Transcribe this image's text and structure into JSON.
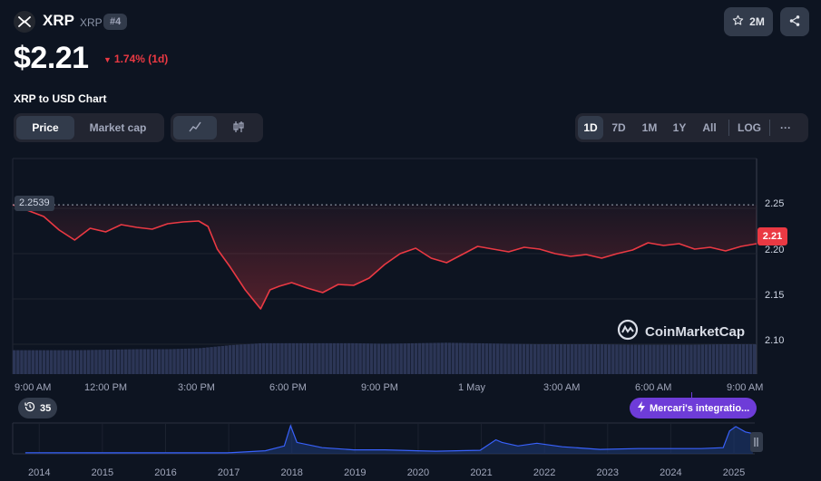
{
  "coin": {
    "name": "XRP",
    "symbol": "XRP",
    "rank": "#4",
    "watchlist_count": "2M"
  },
  "price": {
    "value": "$2.21",
    "change": "1.74% (1d)",
    "change_color": "#ea3943"
  },
  "chart_title": "XRP to USD Chart",
  "tabs": {
    "price": "Price",
    "market_cap": "Market cap"
  },
  "chart_type_icons": [
    "line-chart-icon",
    "candlestick-icon"
  ],
  "ranges": [
    "1D",
    "7D",
    "1M",
    "1Y",
    "All",
    "LOG",
    "···"
  ],
  "active_range": "1D",
  "watermark": "CoinMarketCap",
  "news_pill": "Mercari's integratio...",
  "history_count": "35",
  "chart_data": {
    "type": "line",
    "x_ticks": [
      "9:00 AM",
      "12:00 PM",
      "3:00 PM",
      "6:00 PM",
      "9:00 PM",
      "1 May",
      "3:00 AM",
      "6:00 AM",
      "9:00 AM"
    ],
    "y_ticks": [
      "2.25",
      "2.20",
      "2.15",
      "2.10"
    ],
    "ylim": [
      2.08,
      2.28
    ],
    "open_price_label": "2.2539",
    "current_price_label": "2.21",
    "line_color": "#ea3943",
    "x_hours": [
      0,
      1,
      1.5,
      2,
      2.5,
      3,
      3.5,
      4,
      4.5,
      5,
      5.5,
      6,
      6.3,
      6.6,
      7,
      7.5,
      8,
      8.3,
      8.6,
      9,
      9.5,
      10,
      10.5,
      11,
      11.5,
      12,
      12.5,
      13,
      13.5,
      14,
      14.5,
      15,
      15.5,
      16,
      16.5,
      17,
      17.5,
      18,
      18.5,
      19,
      19.5,
      20,
      20.5,
      21,
      21.5,
      22,
      22.5,
      23,
      23.5,
      24
    ],
    "values": [
      2.254,
      2.241,
      2.226,
      2.215,
      2.228,
      2.224,
      2.232,
      2.229,
      2.227,
      2.233,
      2.235,
      2.236,
      2.23,
      2.205,
      2.186,
      2.16,
      2.139,
      2.16,
      2.164,
      2.168,
      2.162,
      2.157,
      2.166,
      2.165,
      2.173,
      2.188,
      2.2,
      2.206,
      2.195,
      2.19,
      2.199,
      2.208,
      2.205,
      2.202,
      2.207,
      2.205,
      2.2,
      2.197,
      2.199,
      2.195,
      2.2,
      2.204,
      2.212,
      2.209,
      2.211,
      2.205,
      2.207,
      2.203,
      2.208,
      2.211
    ],
    "volume_levels": [
      0.48,
      0.48,
      0.48,
      0.49,
      0.5,
      0.5,
      0.52,
      0.58,
      0.62,
      0.62,
      0.62,
      0.62,
      0.61,
      0.62,
      0.63,
      0.62,
      0.61,
      0.6,
      0.6,
      0.6,
      0.59,
      0.59,
      0.59,
      0.6,
      0.6
    ],
    "history": {
      "years": [
        "2014",
        "2015",
        "2016",
        "2017",
        "2018",
        "2019",
        "2020",
        "2021",
        "2022",
        "2023",
        "2024",
        "2025"
      ],
      "year_starts": [
        2014,
        2015,
        2016,
        2017,
        2018,
        2019,
        2020,
        2021,
        2022,
        2023,
        2024,
        2025
      ],
      "x": [
        2013.8,
        2014,
        2015,
        2016,
        2017,
        2017.6,
        2017.9,
        2018.0,
        2018.1,
        2018.5,
        2019,
        2019.5,
        2020,
        2020.3,
        2021,
        2021.25,
        2021.35,
        2021.6,
        2021.9,
        2022.3,
        2022.9,
        2023.5,
        2024,
        2024.5,
        2024.85,
        2024.95,
        2025.05,
        2025.2,
        2025.32
      ],
      "values": [
        0.02,
        0.02,
        0.01,
        0.01,
        0.01,
        0.25,
        0.8,
        3.1,
        1.2,
        0.6,
        0.35,
        0.35,
        0.25,
        0.2,
        0.3,
        1.5,
        1.2,
        0.8,
        1.1,
        0.7,
        0.4,
        0.5,
        0.5,
        0.5,
        0.6,
        2.5,
        3.0,
        2.4,
        2.2
      ]
    }
  }
}
